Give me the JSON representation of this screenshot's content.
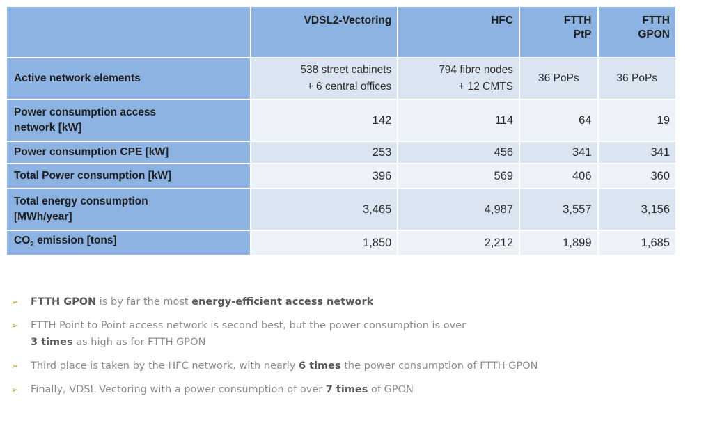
{
  "table": {
    "headers": {
      "col1": "VDSL2-Vectoring",
      "col2": "HFC",
      "col3_line1": "FTTH",
      "col3_line2": "PtP",
      "col4_line1": "FTTH",
      "col4_line2": "GPON"
    },
    "rows": [
      {
        "label": "Active network elements",
        "vdsl_line1": "538 street cabinets",
        "vdsl_line2": "+ 6 central offices",
        "hfc_line1": "794 fibre nodes",
        "hfc_line2": "+ 12 CMTS",
        "ptp": "36 PoPs",
        "gpon": "36 PoPs"
      },
      {
        "label_line1": "Power consumption access",
        "label_line2": "network [kW]",
        "vdsl": "142",
        "hfc": "114",
        "ptp": "64",
        "gpon": "19"
      },
      {
        "label": "Power consumption CPE [kW]",
        "vdsl": "253",
        "hfc": "456",
        "ptp": "341",
        "gpon": "341"
      },
      {
        "label": "Total Power consumption [kW]",
        "vdsl": "396",
        "hfc": "569",
        "ptp": "406",
        "gpon": "360"
      },
      {
        "label_line1": "Total energy consumption",
        "label_line2": "[MWh/year]",
        "vdsl": "3,465",
        "hfc": "4,987",
        "ptp": "3,557",
        "gpon": "3,156"
      },
      {
        "label_prefix": "CO",
        "label_sub": "2",
        "label_suffix": " emission [tons]",
        "vdsl": "1,850",
        "hfc": "2,212",
        "ptp": "1,899",
        "gpon": "1,685"
      }
    ]
  },
  "bullets": [
    {
      "p1": "FTTH GPON",
      "p2": " is by far the most ",
      "p3": "energy-efficient access network"
    },
    {
      "p1": "FTTH Point to Point access network is second best, but the power consumption is over",
      "p2": "3 times",
      "p3": " as high as for FTTH GPON"
    },
    {
      "p1": "Third place is taken by the HFC network, with nearly ",
      "p2": "6 times",
      "p3": " the power consumption of FTTH GPON"
    },
    {
      "p1": "Finally, VDSL Vectoring with a power consumption of over ",
      "p2": "7 times",
      "p3": " of GPON"
    }
  ],
  "icons": {
    "bullet": "arrow-right-icon",
    "bullet_glyph": "➢"
  },
  "colors": {
    "header_bg": "#8db3e2",
    "row_odd": "#dbe4f1",
    "row_even": "#edf2f9"
  }
}
